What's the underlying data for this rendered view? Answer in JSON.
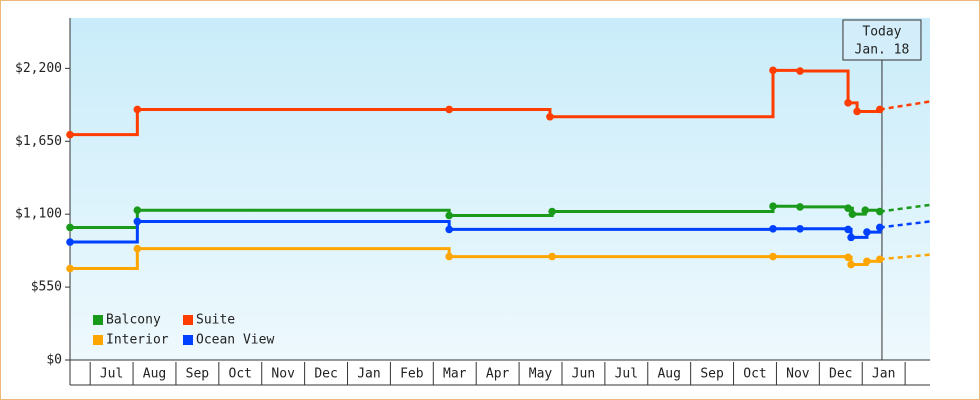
{
  "chart_data": {
    "type": "step-line",
    "xlim": [
      -0.47,
      19.58
    ],
    "ylim": [
      0,
      2580
    ],
    "yticks": [
      {
        "value": 0,
        "label": "$0"
      },
      {
        "value": 550,
        "label": "$550"
      },
      {
        "value": 1100,
        "label": "$1,100"
      },
      {
        "value": 1650,
        "label": "$1,650"
      },
      {
        "value": 2200,
        "label": "$2,200"
      }
    ],
    "xticks": [
      {
        "value": 0.5,
        "label": "Jul"
      },
      {
        "value": 1.5,
        "label": "Aug"
      },
      {
        "value": 2.5,
        "label": "Sep"
      },
      {
        "value": 3.5,
        "label": "Oct"
      },
      {
        "value": 4.5,
        "label": "Nov"
      },
      {
        "value": 5.5,
        "label": "Dec"
      },
      {
        "value": 6.5,
        "label": "Jan"
      },
      {
        "value": 7.5,
        "label": "Feb"
      },
      {
        "value": 8.5,
        "label": "Mar"
      },
      {
        "value": 9.5,
        "label": "Apr"
      },
      {
        "value": 10.5,
        "label": "May"
      },
      {
        "value": 11.5,
        "label": "Jun"
      },
      {
        "value": 12.5,
        "label": "Jul"
      },
      {
        "value": 13.5,
        "label": "Aug"
      },
      {
        "value": 14.5,
        "label": "Sep"
      },
      {
        "value": 15.5,
        "label": "Oct"
      },
      {
        "value": 16.5,
        "label": "Nov"
      },
      {
        "value": 17.5,
        "label": "Dec"
      },
      {
        "value": 18.5,
        "label": "Jan"
      }
    ],
    "today": {
      "x": 18.46,
      "label": "Today",
      "date": "Jan. 18"
    },
    "forecast_x": 19.58,
    "legend": "lower-left",
    "series": [
      {
        "name": "Balcony",
        "color": "#1a9a1a",
        "x": [
          -0.47,
          1.1,
          8.37,
          10.77,
          15.92,
          16.55,
          17.67,
          17.77,
          18.07,
          18.41
        ],
        "values": [
          1000,
          1130,
          1090,
          1120,
          1160,
          1155,
          1145,
          1100,
          1130,
          1120
        ],
        "forecast": 1170
      },
      {
        "name": "Suite",
        "color": "#ff3d00",
        "x": [
          -0.47,
          1.1,
          8.37,
          10.72,
          15.92,
          16.55,
          17.67,
          17.88,
          18.41
        ],
        "values": [
          1700,
          1890,
          1890,
          1835,
          2185,
          2180,
          1940,
          1875,
          1890
        ],
        "forecast": 1950
      },
      {
        "name": "Interior",
        "color": "#ffa500",
        "x": [
          -0.47,
          1.1,
          8.37,
          10.77,
          15.92,
          17.67,
          17.74,
          18.11,
          18.41
        ],
        "values": [
          690,
          840,
          780,
          780,
          780,
          775,
          720,
          745,
          760
        ],
        "forecast": 795
      },
      {
        "name": "Ocean View",
        "color": "#0040ff",
        "x": [
          -0.47,
          1.1,
          8.37,
          15.92,
          16.55,
          17.67,
          17.74,
          18.11,
          18.41
        ],
        "values": [
          890,
          1045,
          985,
          990,
          990,
          985,
          925,
          965,
          1000
        ],
        "forecast": 1045
      }
    ]
  }
}
